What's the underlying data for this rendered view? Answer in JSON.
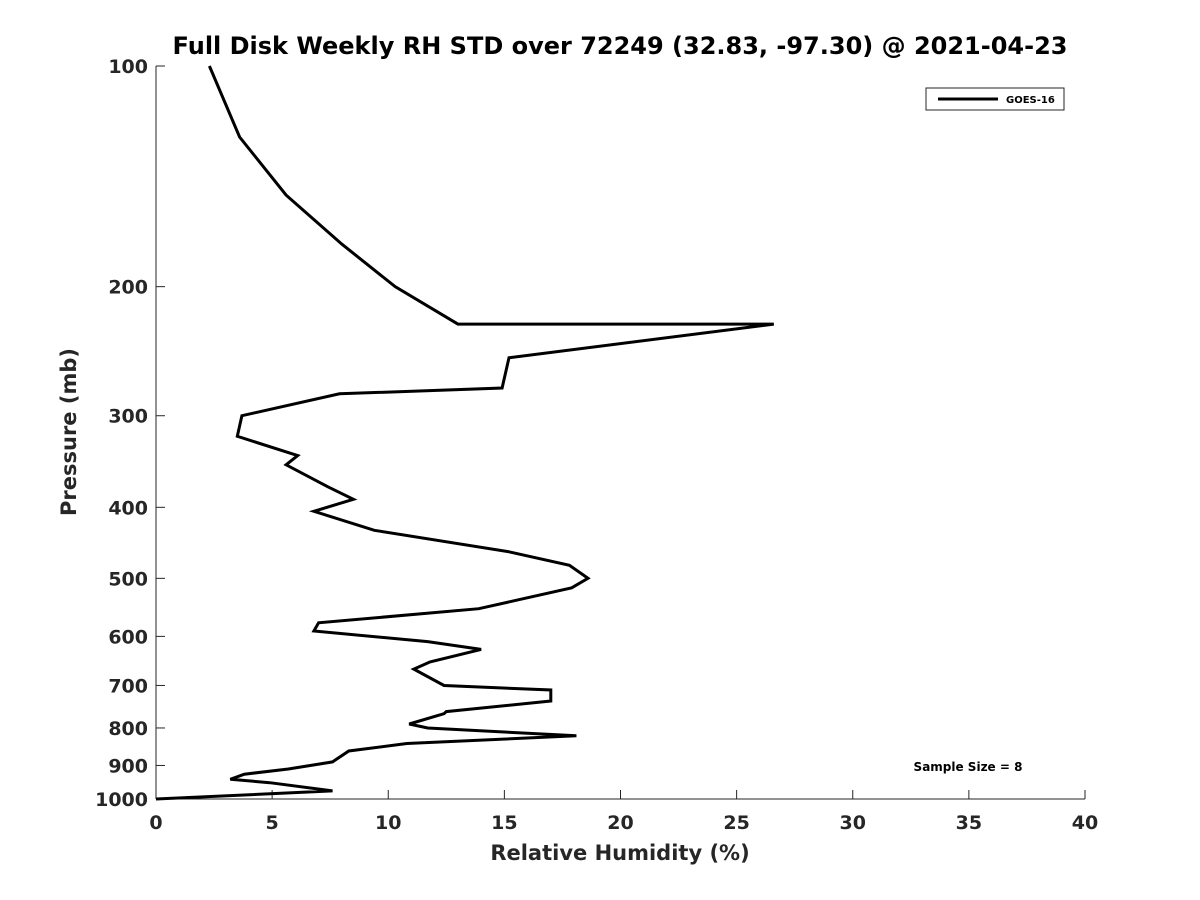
{
  "chart_data": {
    "type": "line",
    "title": "Full Disk Weekly RH STD over 72249 (32.83, -97.30) @ 2021-04-23",
    "xlabel": "Relative Humidity (%)",
    "ylabel": "Pressure (mb)",
    "xlim": [
      0,
      40
    ],
    "ylim": [
      100,
      1000
    ],
    "y_scale": "log",
    "y_reversed": true,
    "x_ticks": [
      0,
      5,
      10,
      15,
      20,
      25,
      30,
      35,
      40
    ],
    "y_ticks": [
      100,
      200,
      300,
      400,
      500,
      600,
      700,
      800,
      900,
      1000
    ],
    "grid": false,
    "legend_position": "top-right",
    "series": [
      {
        "name": "GOES-16",
        "color": "#000000",
        "x": [
          2.3,
          3.6,
          5.6,
          8.0,
          10.3,
          13.0,
          26.6,
          15.2,
          14.9,
          7.9,
          3.7,
          3.5,
          6.1,
          5.6,
          7.4,
          8.5,
          6.8,
          9.4,
          15.2,
          17.8,
          18.6,
          17.9,
          13.9,
          7.0,
          6.8,
          11.7,
          14.0,
          11.8,
          11.1,
          12.4,
          17.0,
          17.0,
          12.5,
          12.4,
          10.9,
          11.7,
          18.1,
          10.8,
          8.3,
          7.6,
          5.7,
          3.8,
          3.2,
          4.9,
          7.6,
          0.0
        ],
        "y": [
          100,
          125,
          150,
          175,
          200,
          225,
          225,
          250,
          275,
          280,
          300,
          320,
          340,
          350,
          375,
          390,
          405,
          430,
          460,
          480,
          500,
          515,
          550,
          575,
          590,
          610,
          625,
          650,
          665,
          700,
          710,
          735,
          760,
          765,
          790,
          800,
          820,
          840,
          860,
          890,
          910,
          925,
          940,
          950,
          975,
          1000
        ]
      }
    ],
    "annotations": [
      "Sample Size = 8"
    ]
  }
}
